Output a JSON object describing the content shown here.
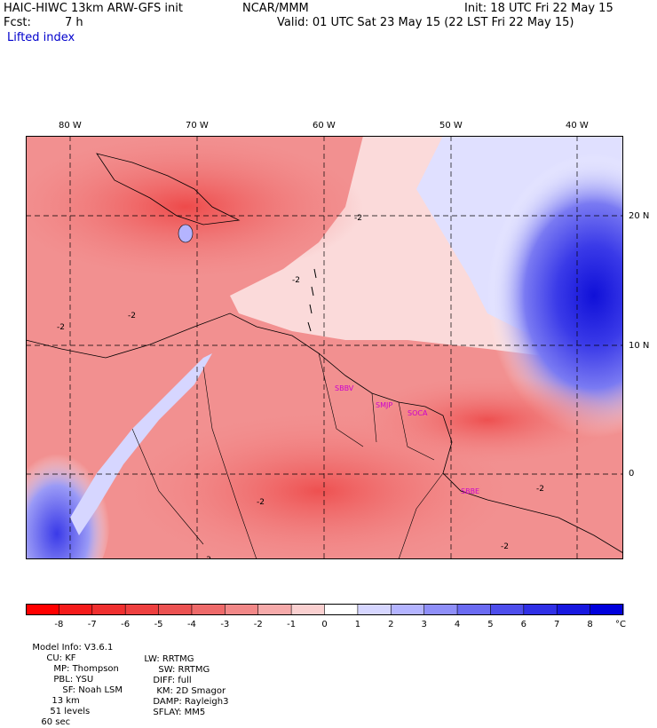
{
  "header": {
    "title": "HAIC-HIWC 13km ARW-GFS init",
    "org": "NCAR/MMM",
    "init": "Init: 18 UTC Fri 22 May 15",
    "fcst_label": "Fcst:",
    "fcst_value": "7 h",
    "valid": "Valid: 01 UTC Sat 23 May 15 (22 LST Fri 22 May 15)",
    "field": "Lifted index"
  },
  "axes": {
    "lon_labels": [
      "80 W",
      "70 W",
      "60 W",
      "50 W",
      "40 W"
    ],
    "lat_labels": [
      "20 N",
      "10 N",
      "0"
    ]
  },
  "stations": [
    "SBBV",
    "SMJP",
    "SOCA",
    "SBBE"
  ],
  "contour_labels": [
    "-2",
    "-2",
    "-2",
    "-2",
    "-2",
    "-2",
    "-2",
    "-2"
  ],
  "colorbar": {
    "ticks": [
      "-8",
      "-7",
      "-6",
      "-5",
      "-4",
      "-3",
      "-2",
      "-1",
      "0",
      "1",
      "2",
      "3",
      "4",
      "5",
      "6",
      "7",
      "8"
    ],
    "unit": "°C",
    "colors": [
      "#ff0000",
      "#f51b1b",
      "#f03030",
      "#ee4040",
      "#ec5252",
      "#ee6a6a",
      "#f28888",
      "#f6aaaa",
      "#fad0d0",
      "#ffffff",
      "#d6d6ff",
      "#b4b4ff",
      "#8f8ff8",
      "#6b6bf2",
      "#4e4eec",
      "#3030e6",
      "#1818e0",
      "#0000dc"
    ]
  },
  "model_info": {
    "line1": [
      "Model Info: V3.6.1",
      "CU: KF",
      "MP: Thompson",
      "PBL: YSU",
      "SF: Noah LSM",
      "13 km",
      "51 levels",
      "60 sec"
    ],
    "line2": [
      "LW: RRTMG",
      "SW: RRTMG",
      "DIFF: full",
      "KM: 2D Smagor",
      "DAMP: Rayleigh3",
      "SFLAY: MM5"
    ]
  }
}
